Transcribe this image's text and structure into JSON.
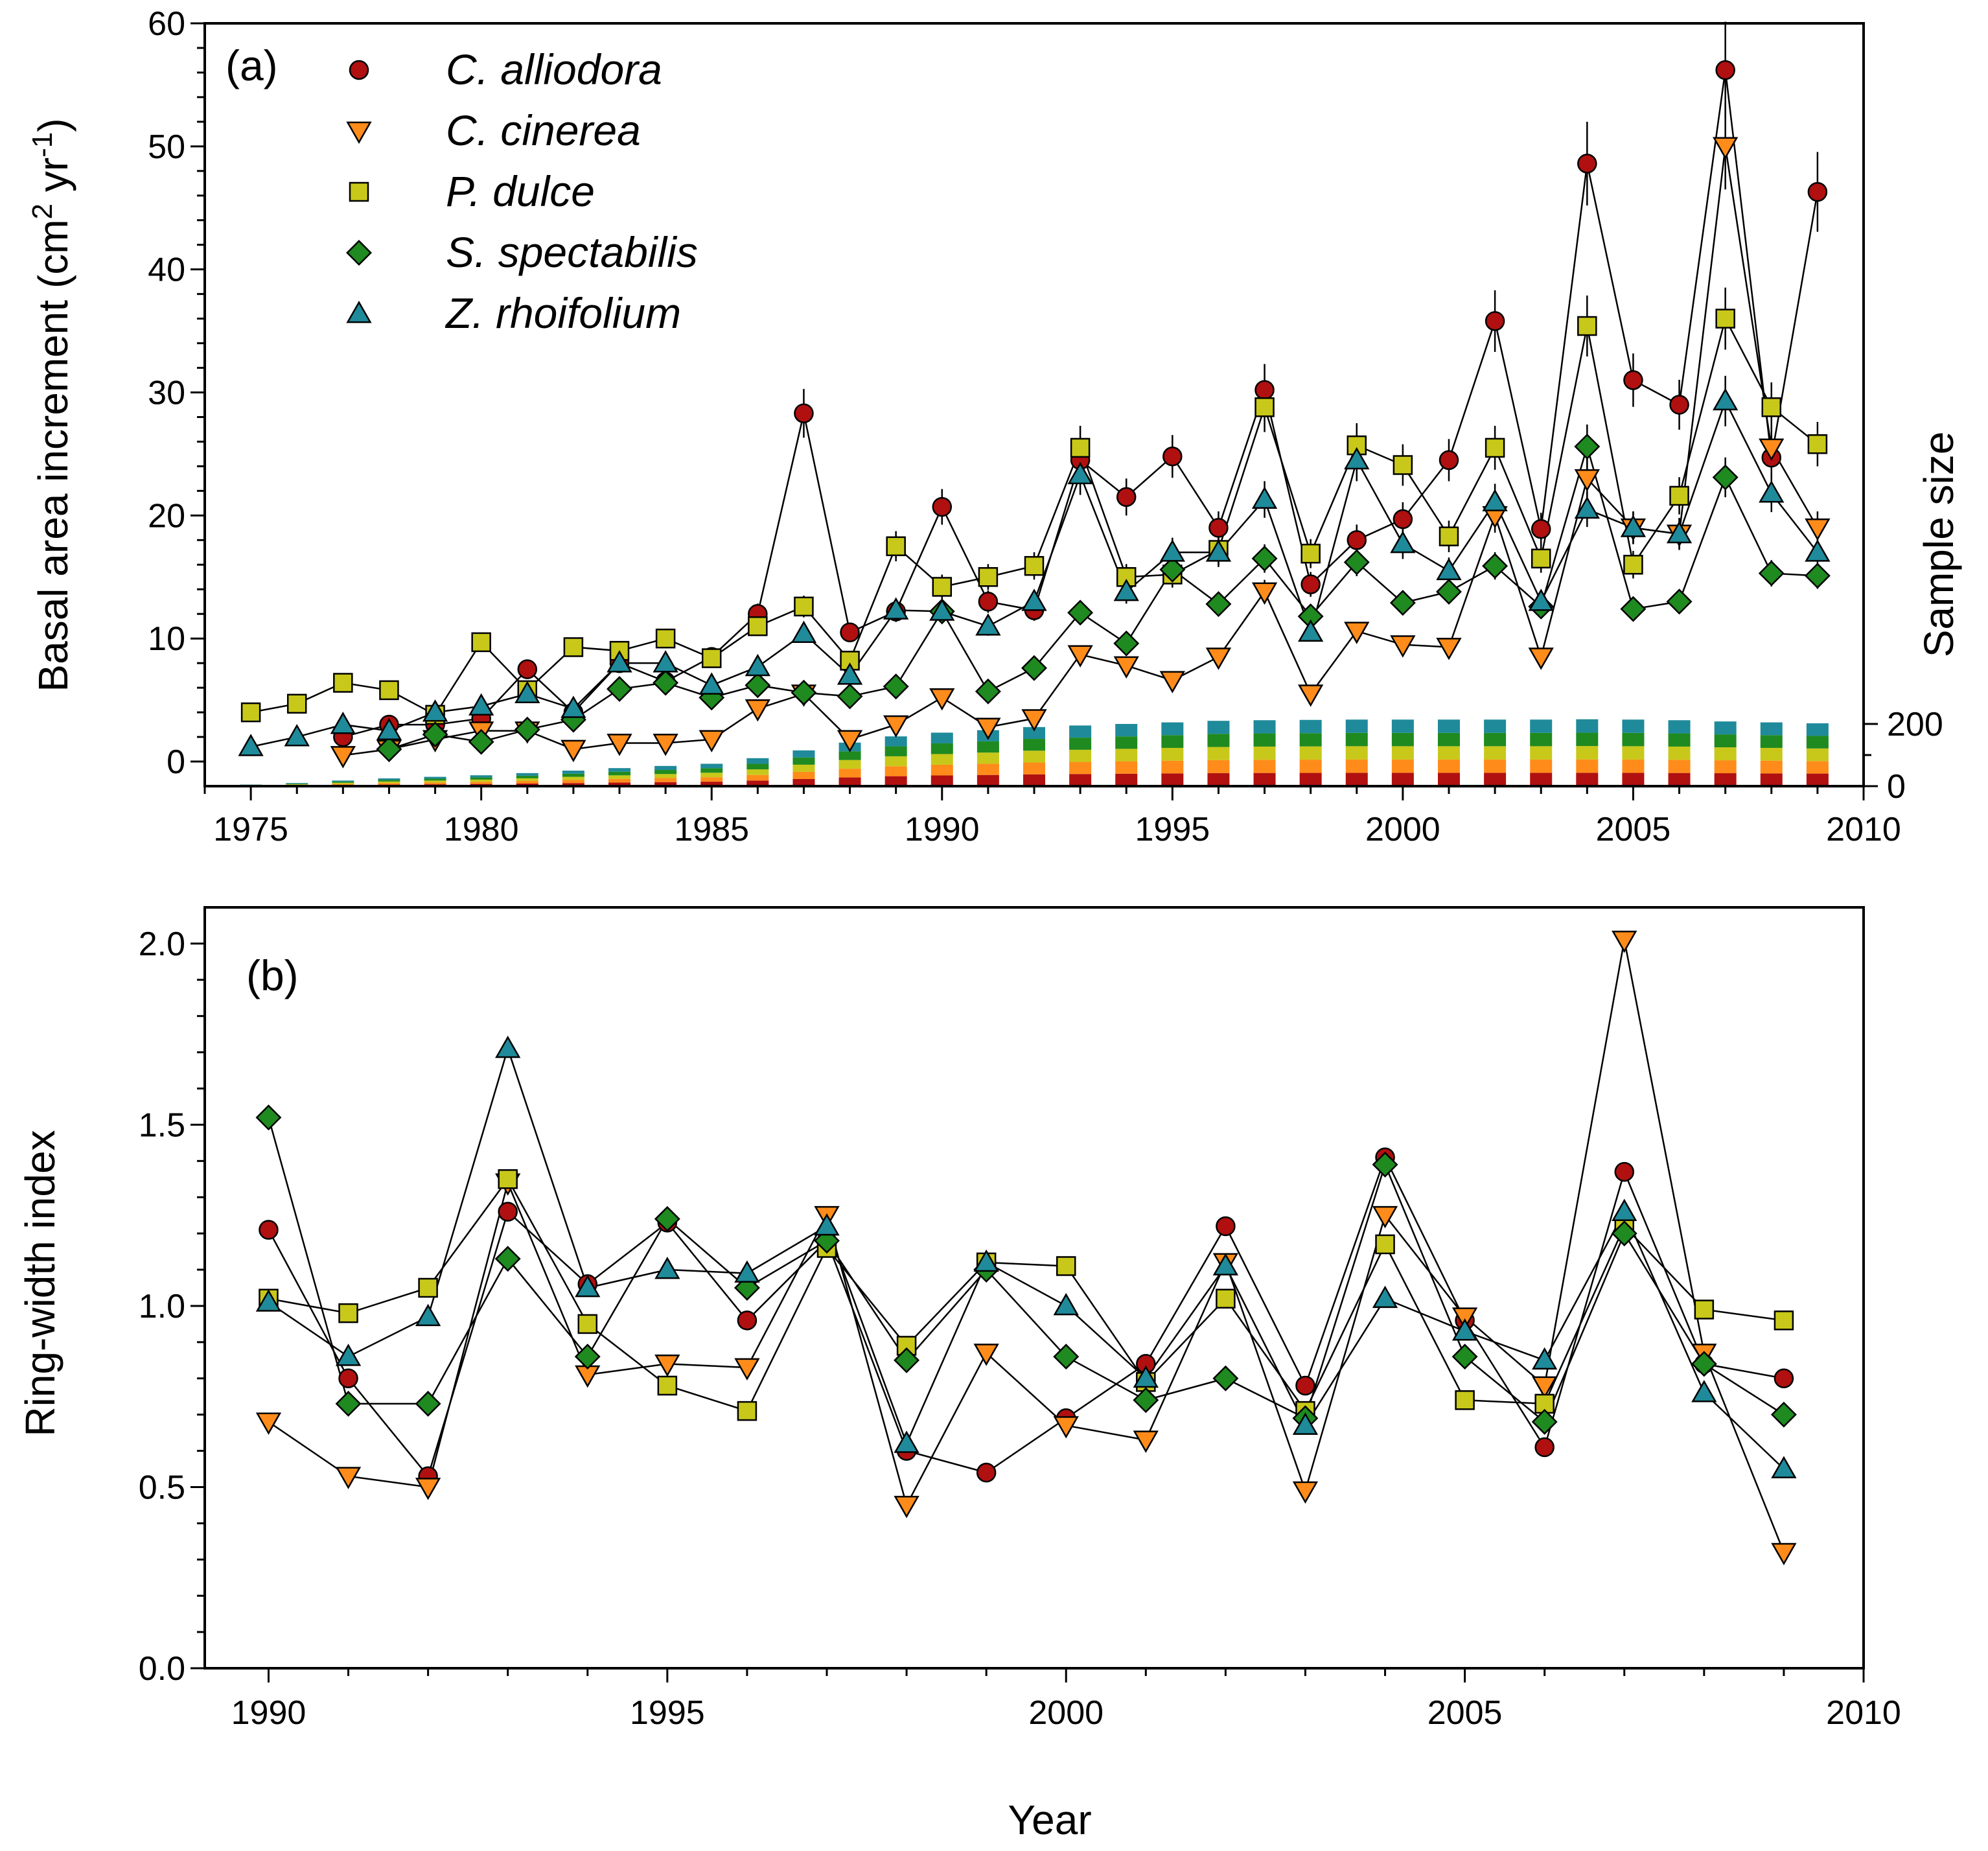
{
  "colors": {
    "C. alliodora": "#b01010",
    "C. cinerea": "#ff8c1a",
    "P. dulce": "#c8c81a",
    "S. spectabilis": "#1f8a1f",
    "Z. rhoifolium": "#1f8a9a"
  },
  "chart_data": [
    {
      "type": "line",
      "panel_label": "(a)",
      "xlabel": "",
      "ylabel": "Basal area increment (cm² yr⁻¹)",
      "ylabel_parts": {
        "main": "Basal area increment (cm",
        "sup1": "2",
        "mid": " yr",
        "sup2": "-1",
        "end": ")"
      },
      "y2label": "Sample size",
      "xlim": [
        1974,
        2010
      ],
      "ylim": [
        -2,
        60
      ],
      "xticks": [
        "1975",
        "1980",
        "1985",
        "1990",
        "1995",
        "2000",
        "2005",
        "2010"
      ],
      "yticks": [
        "0",
        "10",
        "20",
        "30",
        "40",
        "50",
        "60"
      ],
      "y2ticks": [
        "0",
        "200"
      ],
      "y2lim": [
        0,
        500
      ],
      "markers": {
        "C. alliodora": "circle",
        "C. cinerea": "triangle-down",
        "P. dulce": "square",
        "S. spectabilis": "diamond",
        "Z. rhoifolium": "triangle-up"
      },
      "legend": [
        "C. alliodora",
        "C. cinerea",
        "P. dulce",
        "S. spectabilis",
        "Z. rhoifolium"
      ],
      "series": [
        {
          "name": "C. alliodora",
          "x": [
            1977,
            1978,
            1979,
            1980,
            1981,
            1982,
            1983,
            1984,
            1985,
            1986,
            1987,
            1988,
            1989,
            1990,
            1991,
            1992,
            1993,
            1994,
            1995,
            1996,
            1997,
            1998,
            1999,
            2000,
            2001,
            2002,
            2003,
            2004,
            2005,
            2006,
            2007,
            2008,
            2009
          ],
          "values": [
            2,
            3,
            3,
            3.5,
            7.5,
            4,
            8,
            6.5,
            8.5,
            12,
            28.3,
            10.5,
            12.2,
            20.7,
            13,
            12.3,
            24.5,
            21.5,
            24.8,
            19,
            30.2,
            14.4,
            18,
            19.7,
            24.5,
            35.8,
            18.9,
            48.6,
            31,
            29,
            56.2,
            24.7,
            46.3
          ]
        },
        {
          "name": "C. cinerea",
          "x": [
            1977,
            1978,
            1979,
            1980,
            1981,
            1982,
            1983,
            1984,
            1985,
            1986,
            1987,
            1988,
            1989,
            1990,
            1991,
            1992,
            1993,
            1994,
            1995,
            1996,
            1997,
            1998,
            1999,
            2000,
            2001,
            2002,
            2003,
            2004,
            2005,
            2006,
            2007,
            2008,
            2009
          ],
          "values": [
            0.5,
            1,
            1.8,
            2.5,
            2.5,
            1,
            1.5,
            1.5,
            1.8,
            4.3,
            5.5,
            1.8,
            3,
            5.2,
            2.8,
            3.5,
            8.7,
            7.8,
            6.6,
            8.5,
            13.8,
            5.5,
            10.6,
            9.5,
            9.3,
            20,
            8.5,
            23,
            19,
            18.5,
            50,
            25.5,
            19
          ]
        },
        {
          "name": "P. dulce",
          "x": [
            1975,
            1976,
            1977,
            1978,
            1979,
            1980,
            1981,
            1982,
            1983,
            1984,
            1985,
            1986,
            1987,
            1988,
            1989,
            1990,
            1991,
            1992,
            1993,
            1994,
            1995,
            1996,
            1997,
            1998,
            1999,
            2000,
            2001,
            2002,
            2003,
            2004,
            2005,
            2006,
            2007,
            2008,
            2009
          ],
          "values": [
            4,
            4.7,
            6.4,
            5.8,
            3.8,
            9.7,
            5.8,
            9.3,
            9,
            10,
            8.4,
            11,
            12.6,
            8.2,
            17.5,
            14.2,
            15,
            15.9,
            25.5,
            15,
            15.2,
            17.2,
            28.8,
            16.9,
            25.7,
            24.1,
            18.3,
            25.5,
            16.5,
            35.4,
            16,
            21.6,
            36,
            28.8,
            25.8
          ]
        },
        {
          "name": "S. spectabilis",
          "x": [
            1978,
            1979,
            1980,
            1981,
            1982,
            1983,
            1984,
            1985,
            1986,
            1987,
            1988,
            1989,
            1990,
            1991,
            1992,
            1993,
            1994,
            1995,
            1996,
            1997,
            1998,
            1999,
            2000,
            2001,
            2002,
            2003,
            2004,
            2005,
            2006,
            2007,
            2008,
            2009
          ],
          "values": [
            1,
            2.2,
            1.6,
            2.6,
            3.4,
            5.9,
            6.4,
            5.2,
            6.2,
            5.6,
            5.3,
            6.1,
            12.2,
            5.7,
            7.6,
            12.1,
            9.6,
            15.6,
            12.8,
            16.5,
            11.8,
            16.2,
            12.9,
            13.8,
            15.9,
            12.6,
            25.6,
            12.4,
            13,
            23.1,
            15.3,
            15.1
          ]
        },
        {
          "name": "Z. rhoifolium",
          "x": [
            1975,
            1976,
            1977,
            1978,
            1979,
            1980,
            1981,
            1982,
            1983,
            1984,
            1985,
            1986,
            1987,
            1988,
            1989,
            1990,
            1991,
            1992,
            1993,
            1994,
            1995,
            1996,
            1997,
            1998,
            1999,
            2000,
            2001,
            2002,
            2003,
            2004,
            2005,
            2006,
            2007,
            2008,
            2009
          ],
          "values": [
            1.2,
            2,
            3,
            2.5,
            4,
            4.5,
            5.5,
            4.3,
            8,
            8,
            6.2,
            7.7,
            10.4,
            7,
            12.3,
            12.2,
            11,
            13,
            23.3,
            13.8,
            17,
            17,
            21.3,
            10.5,
            24.5,
            17.7,
            15.5,
            21.1,
            13,
            20.5,
            19,
            18.5,
            29.3,
            21.8,
            17
          ]
        }
      ],
      "sample_size": {
        "years": [
          1975,
          1976,
          1977,
          1978,
          1979,
          1980,
          1981,
          1982,
          1983,
          1984,
          1985,
          1986,
          1987,
          1988,
          1989,
          1990,
          1991,
          1992,
          1993,
          1994,
          1995,
          1996,
          1997,
          1998,
          1999,
          2000,
          2001,
          2002,
          2003,
          2004,
          2005,
          2006,
          2007,
          2008,
          2009
        ],
        "stack_order": [
          "C. alliodora",
          "C. cinerea",
          "P. dulce",
          "S. spectabilis",
          "Z. rhoifolium"
        ],
        "totals": [
          5,
          10,
          18,
          25,
          30,
          35,
          42,
          50,
          58,
          65,
          72,
          90,
          115,
          140,
          160,
          172,
          180,
          190,
          195,
          200,
          205,
          210,
          212,
          213,
          214,
          214,
          214,
          214,
          214,
          215,
          214,
          212,
          208,
          205,
          202
        ]
      }
    },
    {
      "type": "line",
      "panel_label": "(b)",
      "xlabel": "Year",
      "ylabel": "Ring-width index",
      "xlim": [
        1989.2,
        2010
      ],
      "ylim": [
        0,
        2.1
      ],
      "xticks": [
        "1990",
        "1995",
        "2000",
        "2005",
        "2010"
      ],
      "yticks": [
        "0.0",
        "0.5",
        "1.0",
        "1.5",
        "2.0"
      ],
      "x": [
        1990,
        1991,
        1992,
        1993,
        1994,
        1995,
        1996,
        1997,
        1998,
        1999,
        2000,
        2001,
        2002,
        2003,
        2004,
        2005,
        2006,
        2007,
        2008,
        2009
      ],
      "series": [
        {
          "name": "C. alliodora",
          "values": [
            1.21,
            0.8,
            0.53,
            1.26,
            1.06,
            1.23,
            0.96,
            1.18,
            0.6,
            0.54,
            0.69,
            0.84,
            1.22,
            0.78,
            1.41,
            0.96,
            0.61,
            1.37,
            0.84,
            0.8
          ]
        },
        {
          "name": "C. cinerea",
          "values": [
            0.68,
            0.53,
            0.5,
            1.34,
            0.81,
            0.84,
            0.83,
            1.25,
            0.45,
            0.87,
            0.67,
            0.63,
            1.12,
            0.49,
            1.25,
            0.97,
            0.78,
            2.01,
            0.87,
            0.32
          ]
        },
        {
          "name": "P. dulce",
          "values": [
            1.02,
            0.98,
            1.05,
            1.35,
            0.95,
            0.78,
            0.71,
            1.16,
            0.89,
            1.12,
            1.11,
            0.79,
            1.02,
            0.71,
            1.17,
            0.74,
            0.73,
            1.22,
            0.99,
            0.96
          ]
        },
        {
          "name": "S. spectabilis",
          "values": [
            1.52,
            0.73,
            0.73,
            1.13,
            0.86,
            1.24,
            1.05,
            1.18,
            0.85,
            1.1,
            0.86,
            0.74,
            0.8,
            0.69,
            1.39,
            0.86,
            0.68,
            1.2,
            0.84,
            0.7
          ]
        },
        {
          "name": "Z. rhoifolium",
          "values": [
            1.01,
            0.86,
            0.97,
            1.71,
            1.05,
            1.1,
            1.09,
            1.22,
            0.62,
            1.12,
            1.0,
            0.8,
            1.11,
            0.67,
            1.02,
            0.93,
            0.85,
            1.26,
            0.76,
            0.55
          ]
        }
      ]
    }
  ]
}
